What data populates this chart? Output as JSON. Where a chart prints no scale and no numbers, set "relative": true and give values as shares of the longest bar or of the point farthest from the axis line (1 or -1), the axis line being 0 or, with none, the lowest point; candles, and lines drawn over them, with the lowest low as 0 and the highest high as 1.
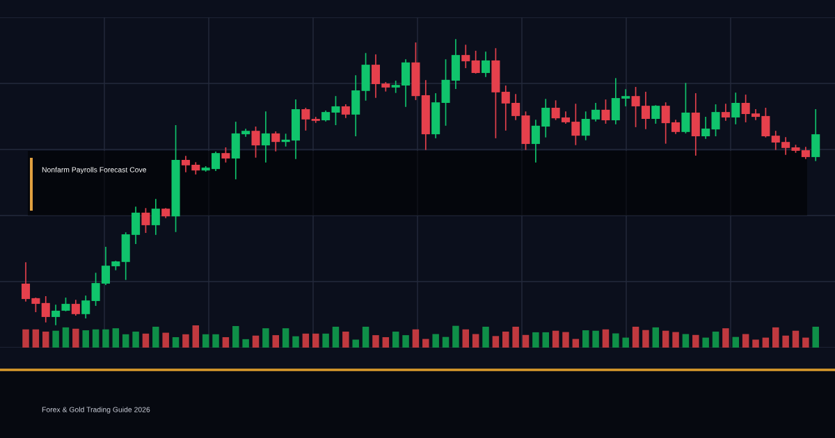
{
  "chart_data": [
    {
      "type": "candlestick",
      "relative": true,
      "grid": true,
      "categories": [
        null,
        null,
        null,
        null,
        null,
        null,
        null,
        null,
        null,
        null,
        null,
        null,
        null,
        null,
        null,
        null,
        null,
        null,
        null,
        null,
        null,
        null,
        null,
        null,
        null,
        null,
        null,
        null,
        null,
        null,
        null,
        null,
        null,
        null,
        null,
        null,
        null,
        null,
        null,
        null,
        null,
        null,
        null,
        null,
        null,
        null,
        null,
        null,
        null,
        null,
        null,
        null,
        null,
        null,
        null,
        null,
        null,
        null,
        null,
        null,
        null,
        null,
        null,
        null,
        null,
        null,
        null,
        null,
        null,
        null,
        null,
        null,
        null,
        null,
        null,
        null,
        null,
        null,
        null,
        null
      ],
      "ohlc": [
        [
          0.144,
          0.217,
          0.083,
          0.09
        ],
        [
          0.093,
          0.093,
          0.046,
          0.073
        ],
        [
          0.076,
          0.098,
          0.01,
          0.027
        ],
        [
          0.027,
          0.068,
          0,
          0.049
        ],
        [
          0.049,
          0.093,
          0.049,
          0.073
        ],
        [
          0.073,
          0.085,
          0.034,
          0.037
        ],
        [
          0.037,
          0.1,
          0.024,
          0.085
        ],
        [
          0.083,
          0.18,
          0.068,
          0.146
        ],
        [
          0.144,
          0.271,
          0.141,
          0.207
        ],
        [
          0.205,
          0.222,
          0.193,
          0.222
        ],
        [
          0.22,
          0.322,
          0.159,
          0.317
        ],
        [
          0.315,
          0.412,
          0.285,
          0.393
        ],
        [
          0.393,
          0.407,
          0.324,
          0.349
        ],
        [
          0.349,
          0.439,
          0.317,
          0.407
        ],
        [
          0.407,
          0.407,
          0.376,
          0.38
        ],
        [
          0.38,
          0.698,
          0.327,
          0.578
        ],
        [
          0.578,
          0.59,
          0.537,
          0.559
        ],
        [
          0.561,
          0.568,
          0.529,
          0.541
        ],
        [
          0.541,
          0.554,
          0.539,
          0.551
        ],
        [
          0.546,
          0.605,
          0.541,
          0.602
        ],
        [
          0.602,
          0.62,
          0.571,
          0.583
        ],
        [
          0.583,
          0.71,
          0.512,
          0.671
        ],
        [
          0.668,
          0.685,
          0.661,
          0.68
        ],
        [
          0.68,
          0.693,
          0.588,
          0.629
        ],
        [
          0.629,
          0.746,
          0.571,
          0.671
        ],
        [
          0.671,
          0.676,
          0.61,
          0.641
        ],
        [
          0.641,
          0.668,
          0.627,
          0.649
        ],
        [
          0.646,
          0.788,
          0.583,
          0.756
        ],
        [
          0.756,
          0.759,
          0.683,
          0.72
        ],
        [
          0.722,
          0.727,
          0.71,
          0.715
        ],
        [
          0.717,
          0.749,
          0.715,
          0.746
        ],
        [
          0.744,
          0.8,
          0.702,
          0.766
        ],
        [
          0.766,
          0.771,
          0.727,
          0.737
        ],
        [
          0.737,
          0.873,
          0.663,
          0.822
        ],
        [
          0.82,
          0.951,
          0.788,
          0.912
        ],
        [
          0.912,
          0.946,
          0.798,
          0.844
        ],
        [
          0.846,
          0.849,
          0.82,
          0.832
        ],
        [
          0.832,
          0.854,
          0.815,
          0.841
        ],
        [
          0.839,
          0.929,
          0.766,
          0.92
        ],
        [
          0.92,
          0.988,
          0.79,
          0.802
        ],
        [
          0.805,
          0.856,
          0.615,
          0.668
        ],
        [
          0.668,
          0.81,
          0.656,
          0.78
        ],
        [
          0.778,
          0.929,
          0.7,
          0.859
        ],
        [
          0.856,
          1.0,
          0.829,
          0.946
        ],
        [
          0.946,
          0.98,
          0.902,
          0.924
        ],
        [
          0.927,
          0.959,
          0.883,
          0.883
        ],
        [
          0.883,
          0.956,
          0.871,
          0.927
        ],
        [
          0.927,
          0.968,
          0.656,
          0.815
        ],
        [
          0.817,
          0.837,
          0.683,
          0.776
        ],
        [
          0.778,
          0.807,
          0.72,
          0.732
        ],
        [
          0.734,
          0.746,
          0.615,
          0.634
        ],
        [
          0.634,
          0.717,
          0.571,
          0.698
        ],
        [
          0.695,
          0.79,
          0.659,
          0.761
        ],
        [
          0.761,
          0.785,
          0.72,
          0.724
        ],
        [
          0.727,
          0.746,
          0.707,
          0.71
        ],
        [
          0.712,
          0.773,
          0.632,
          0.663
        ],
        [
          0.663,
          0.746,
          0.649,
          0.722
        ],
        [
          0.72,
          0.776,
          0.715,
          0.754
        ],
        [
          0.754,
          0.788,
          0.707,
          0.717
        ],
        [
          0.717,
          0.863,
          0.705,
          0.795
        ],
        [
          0.793,
          0.824,
          0.768,
          0.802
        ],
        [
          0.802,
          0.832,
          0.695,
          0.766
        ],
        [
          0.768,
          0.815,
          0.688,
          0.722
        ],
        [
          0.722,
          0.768,
          0.707,
          0.768
        ],
        [
          0.768,
          0.778,
          0.637,
          0.707
        ],
        [
          0.71,
          0.717,
          0.671,
          0.676
        ],
        [
          0.676,
          0.846,
          0.673,
          0.744
        ],
        [
          0.744,
          0.81,
          0.595,
          0.661
        ],
        [
          0.661,
          0.727,
          0.654,
          0.688
        ],
        [
          0.685,
          0.771,
          0.663,
          0.746
        ],
        [
          0.746,
          0.773,
          0.717,
          0.727
        ],
        [
          0.727,
          0.812,
          0.705,
          0.778
        ],
        [
          0.778,
          0.805,
          0.712,
          0.739
        ],
        [
          0.741,
          0.754,
          0.72,
          0.729
        ],
        [
          0.732,
          0.759,
          0.659,
          0.661
        ],
        [
          0.663,
          0.678,
          0.615,
          0.639
        ],
        [
          0.641,
          0.656,
          0.598,
          0.62
        ],
        [
          0.622,
          0.629,
          0.605,
          0.61
        ],
        [
          0.612,
          0.622,
          0.583,
          0.588
        ],
        [
          0.588,
          0.754,
          0.576,
          0.668
        ]
      ],
      "colors": [
        "#e5404c",
        "#e5404c",
        "#e5404c",
        "#10c46c",
        "#10c46c",
        "#e5404c",
        "#10c46c",
        "#10c46c",
        "#10c46c",
        "#10c46c",
        "#10c46c",
        "#10c46c",
        "#e5404c",
        "#10c46c",
        "#e5404c",
        "#10c46c",
        "#e5404c",
        "#e5404c",
        "#10c46c",
        "#10c46c",
        "#e5404c",
        "#10c46c",
        "#10c46c",
        "#e5404c",
        "#10c46c",
        "#e5404c",
        "#10c46c",
        "#10c46c",
        "#e5404c",
        "#e5404c",
        "#10c46c",
        "#10c46c",
        "#e5404c",
        "#10c46c",
        "#10c46c",
        "#e5404c",
        "#e5404c",
        "#10c46c",
        "#10c46c",
        "#e5404c",
        "#e5404c",
        "#10c46c",
        "#10c46c",
        "#10c46c",
        "#e5404c",
        "#e5404c",
        "#10c46c",
        "#e5404c",
        "#e5404c",
        "#e5404c",
        "#e5404c",
        "#10c46c",
        "#10c46c",
        "#e5404c",
        "#e5404c",
        "#e5404c",
        "#10c46c",
        "#10c46c",
        "#e5404c",
        "#10c46c",
        "#10c46c",
        "#e5404c",
        "#e5404c",
        "#10c46c",
        "#e5404c",
        "#e5404c",
        "#10c46c",
        "#e5404c",
        "#10c46c",
        "#10c46c",
        "#e5404c",
        "#10c46c",
        "#e5404c",
        "#e5404c",
        "#e5404c",
        "#e5404c",
        "#e5404c",
        "#e5404c",
        "#e5404c",
        "#10c46c"
      ],
      "annotations": [
        "Nonfarm Payrolls Forecast Cove",
        "Forex & Gold Trading Guide 2026"
      ]
    },
    {
      "type": "bar",
      "relative": true,
      "categories": [
        null,
        null,
        null,
        null,
        null,
        null,
        null,
        null,
        null,
        null,
        null,
        null,
        null,
        null,
        null,
        null,
        null,
        null,
        null,
        null,
        null,
        null,
        null,
        null,
        null,
        null,
        null,
        null,
        null,
        null,
        null,
        null,
        null,
        null,
        null,
        null,
        null,
        null,
        null,
        null,
        null,
        null,
        null,
        null,
        null,
        null,
        null,
        null,
        null,
        null,
        null,
        null,
        null,
        null,
        null,
        null,
        null,
        null,
        null,
        null,
        null,
        null,
        null,
        null,
        null,
        null,
        null,
        null,
        null,
        null,
        null,
        null,
        null,
        null,
        null,
        null,
        null,
        null,
        null,
        null
      ],
      "values": [
        0.82,
        0.82,
        0.72,
        0.76,
        0.91,
        0.85,
        0.78,
        0.82,
        0.82,
        0.87,
        0.6,
        0.72,
        0.63,
        0.94,
        0.67,
        0.47,
        0.6,
        1.0,
        0.6,
        0.6,
        0.47,
        0.97,
        0.38,
        0.54,
        0.87,
        0.56,
        0.87,
        0.51,
        0.63,
        0.63,
        0.63,
        0.94,
        0.72,
        0.36,
        0.94,
        0.56,
        0.47,
        0.72,
        0.56,
        0.82,
        0.39,
        0.61,
        0.48,
        0.98,
        0.82,
        0.61,
        0.94,
        0.52,
        0.72,
        0.94,
        0.57,
        0.69,
        0.69,
        0.76,
        0.7,
        0.39,
        0.78,
        0.76,
        0.82,
        0.64,
        0.45,
        0.94,
        0.79,
        0.91,
        0.76,
        0.7,
        0.61,
        0.57,
        0.45,
        0.72,
        0.87,
        0.48,
        0.61,
        0.36,
        0.45,
        0.91,
        0.54,
        0.76,
        0.45,
        0.94
      ],
      "colors": [
        "#c0393f",
        "#c0393f",
        "#c0393f",
        "#0f8f48",
        "#0f8f48",
        "#c0393f",
        "#0f8f48",
        "#0f8f48",
        "#0f8f48",
        "#0f8f48",
        "#0f8f48",
        "#0f8f48",
        "#c0393f",
        "#0f8f48",
        "#c0393f",
        "#0f8f48",
        "#c0393f",
        "#c0393f",
        "#0f8f48",
        "#0f8f48",
        "#c0393f",
        "#0f8f48",
        "#0f8f48",
        "#c0393f",
        "#0f8f48",
        "#c0393f",
        "#0f8f48",
        "#0f8f48",
        "#c0393f",
        "#c0393f",
        "#0f8f48",
        "#0f8f48",
        "#c0393f",
        "#0f8f48",
        "#0f8f48",
        "#c0393f",
        "#c0393f",
        "#0f8f48",
        "#0f8f48",
        "#c0393f",
        "#c0393f",
        "#0f8f48",
        "#0f8f48",
        "#0f8f48",
        "#c0393f",
        "#c0393f",
        "#0f8f48",
        "#c0393f",
        "#c0393f",
        "#c0393f",
        "#c0393f",
        "#0f8f48",
        "#0f8f48",
        "#c0393f",
        "#c0393f",
        "#c0393f",
        "#0f8f48",
        "#0f8f48",
        "#c0393f",
        "#0f8f48",
        "#0f8f48",
        "#c0393f",
        "#c0393f",
        "#0f8f48",
        "#c0393f",
        "#c0393f",
        "#0f8f48",
        "#c0393f",
        "#0f8f48",
        "#0f8f48",
        "#c0393f",
        "#0f8f48",
        "#c0393f",
        "#c0393f",
        "#c0393f",
        "#c0393f",
        "#c0393f",
        "#c0393f",
        "#c0393f",
        "#0f8f48"
      ]
    }
  ]
}
